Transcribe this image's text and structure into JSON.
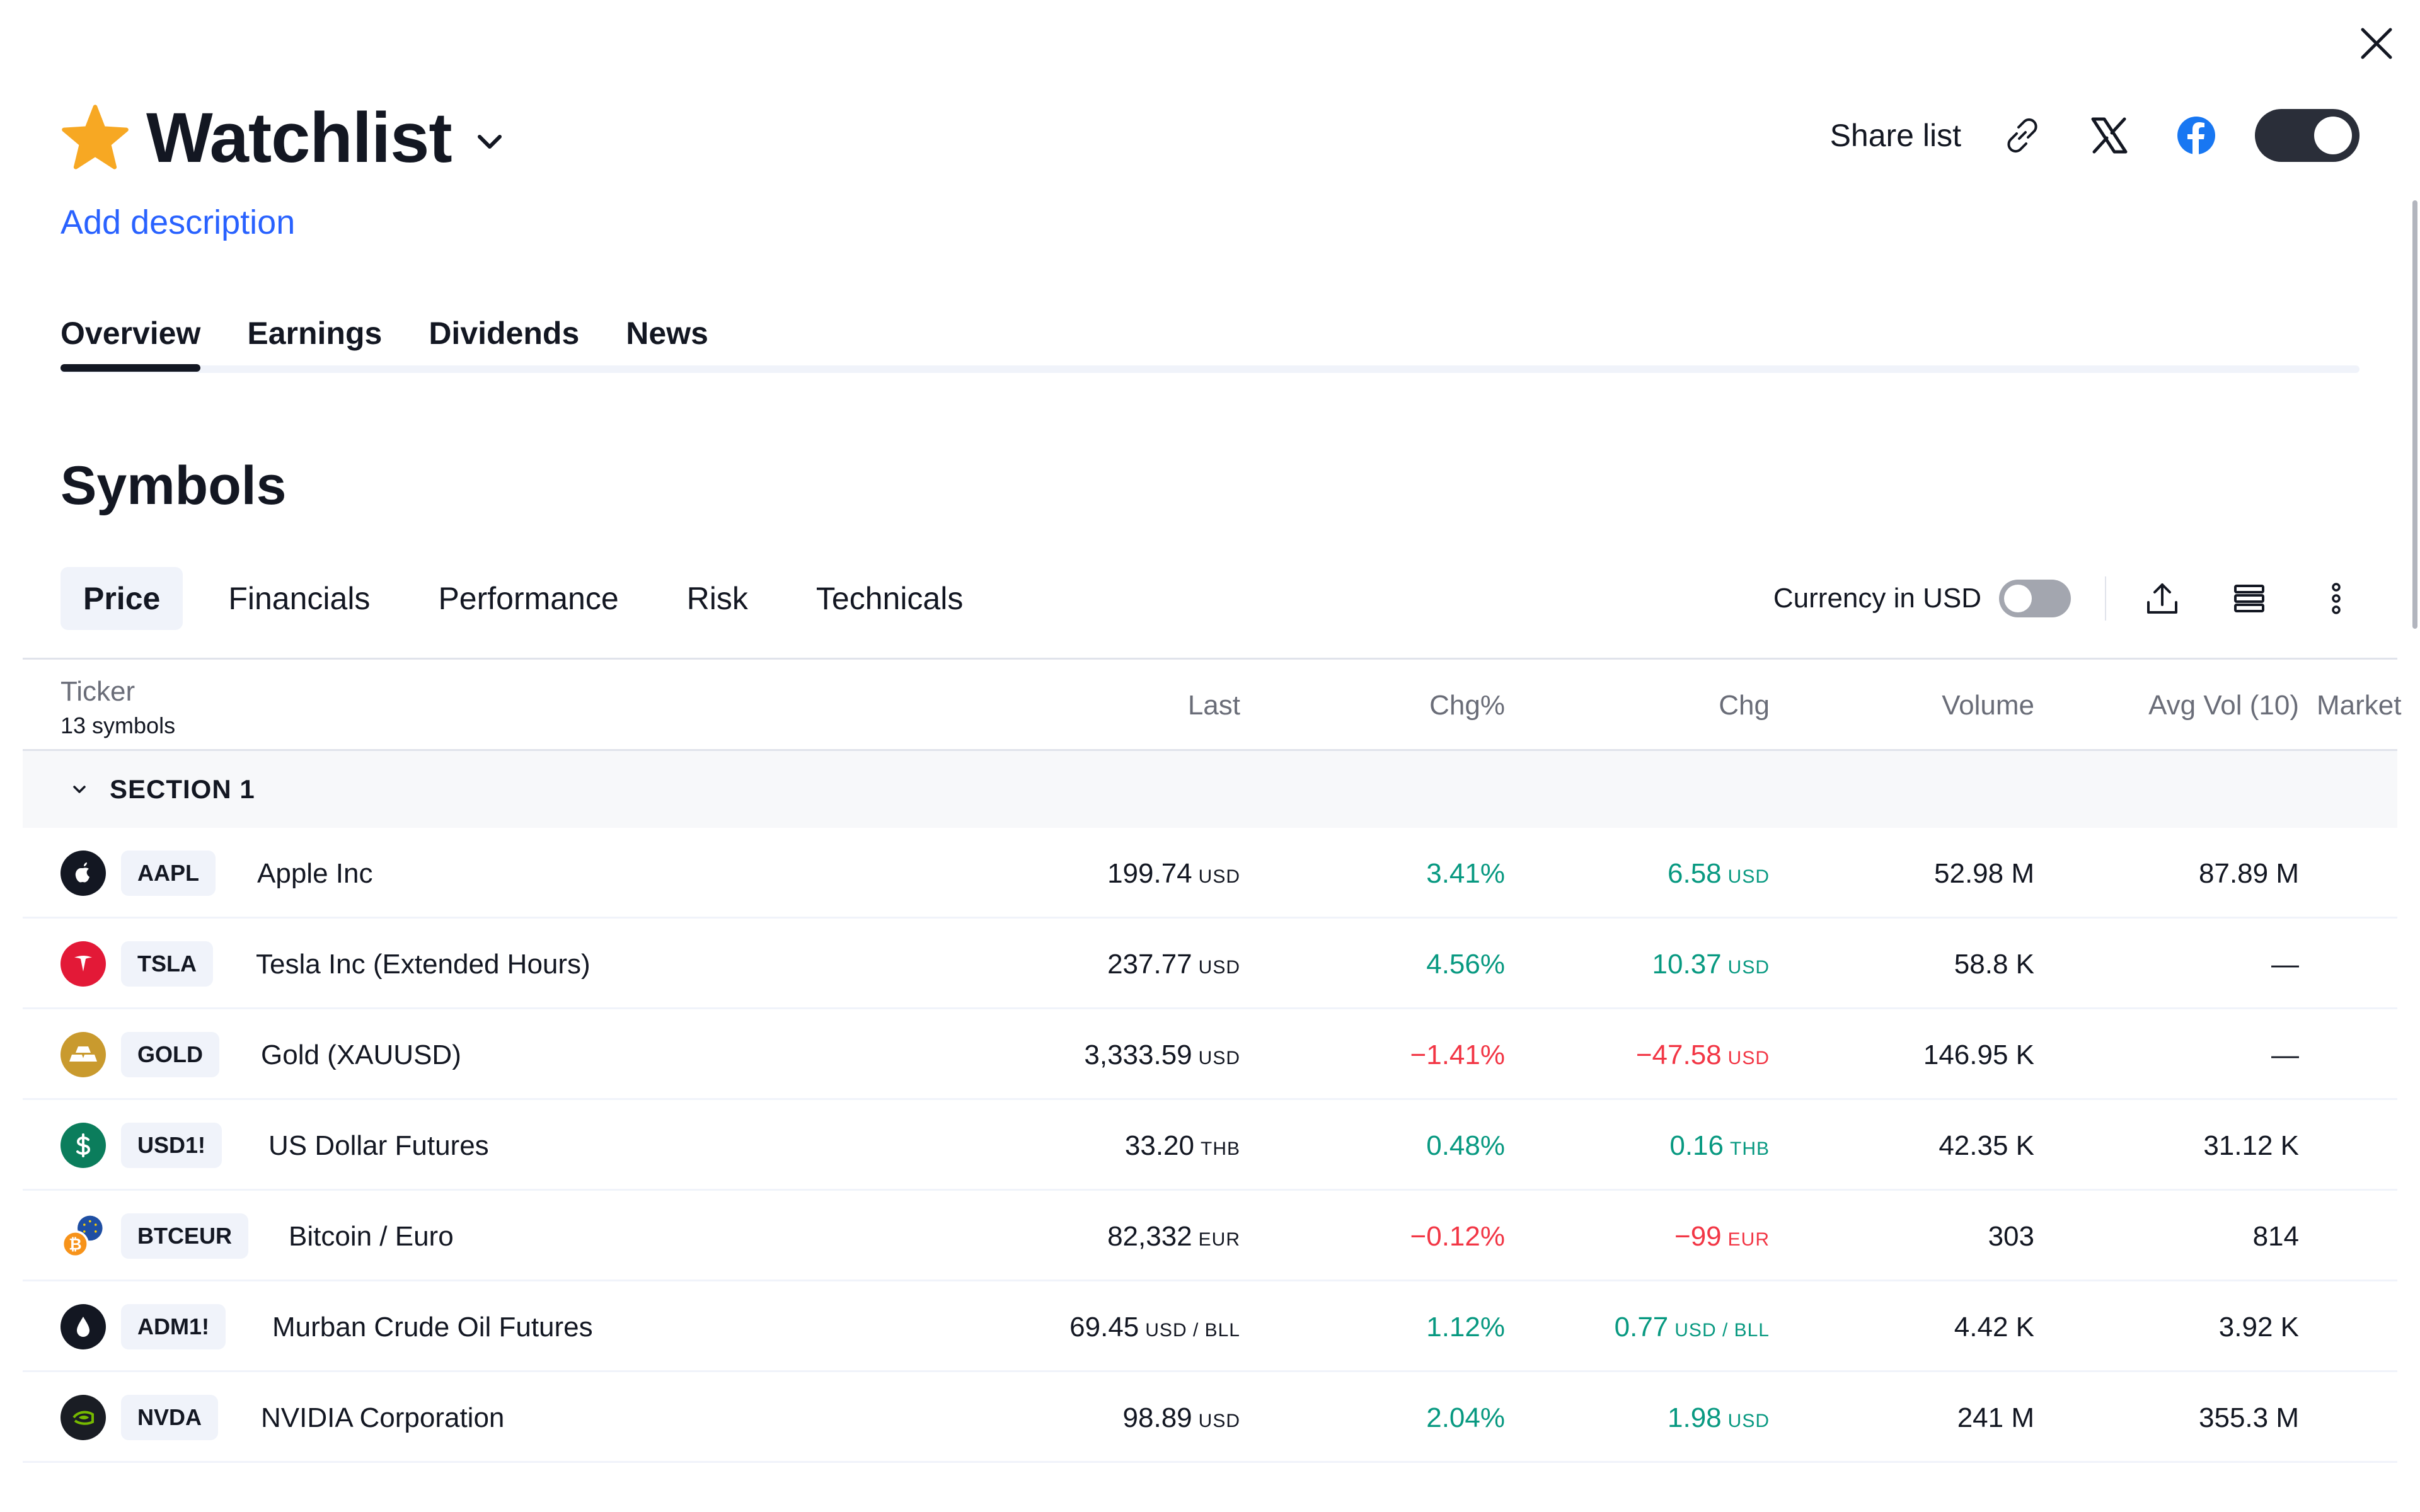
{
  "header": {
    "title": "Watchlist",
    "add_description": "Add description",
    "share_label": "Share list"
  },
  "tabs": [
    "Overview",
    "Earnings",
    "Dividends",
    "News"
  ],
  "section_title": "Symbols",
  "subtabs": [
    "Price",
    "Financials",
    "Performance",
    "Risk",
    "Technicals"
  ],
  "currency_label": "Currency in USD",
  "table": {
    "ticker_header": "Ticker",
    "symbol_count": "13 symbols",
    "columns": [
      "Last",
      "Chg%",
      "Chg",
      "Volume",
      "Avg Vol (10)",
      "Market"
    ],
    "section": "SECTION 1",
    "rows": [
      {
        "ticker": "AAPL",
        "name": "Apple Inc",
        "last": "199.74",
        "last_unit": "USD",
        "chgp": "3.41%",
        "chg": "6.58",
        "chg_unit": "USD",
        "volume": "52.98 M",
        "avg": "87.89 M",
        "dir": "pos"
      },
      {
        "ticker": "TSLA",
        "name": "Tesla Inc (Extended Hours)",
        "last": "237.77",
        "last_unit": "USD",
        "chgp": "4.56%",
        "chg": "10.37",
        "chg_unit": "USD",
        "volume": "58.8 K",
        "avg": "—",
        "dir": "pos"
      },
      {
        "ticker": "GOLD",
        "name": "Gold (XAUUSD)",
        "last": "3,333.59",
        "last_unit": "USD",
        "chgp": "−1.41%",
        "chg": "−47.58",
        "chg_unit": "USD",
        "volume": "146.95 K",
        "avg": "—",
        "dir": "neg"
      },
      {
        "ticker": "USD1!",
        "name": "US Dollar Futures",
        "last": "33.20",
        "last_unit": "THB",
        "chgp": "0.48%",
        "chg": "0.16",
        "chg_unit": "THB",
        "volume": "42.35 K",
        "avg": "31.12 K",
        "dir": "pos"
      },
      {
        "ticker": "BTCEUR",
        "name": "Bitcoin / Euro",
        "last": "82,332",
        "last_unit": "EUR",
        "chgp": "−0.12%",
        "chg": "−99",
        "chg_unit": "EUR",
        "volume": "303",
        "avg": "814",
        "dir": "neg"
      },
      {
        "ticker": "ADM1!",
        "name": "Murban Crude Oil Futures",
        "last": "69.45",
        "last_unit": "USD / BLL",
        "chgp": "1.12%",
        "chg": "0.77",
        "chg_unit": "USD / BLL",
        "volume": "4.42 K",
        "avg": "3.92 K",
        "dir": "pos"
      },
      {
        "ticker": "NVDA",
        "name": "NVIDIA Corporation",
        "last": "98.89",
        "last_unit": "USD",
        "chgp": "2.04%",
        "chg": "1.98",
        "chg_unit": "USD",
        "volume": "241 M",
        "avg": "355.3 M",
        "dir": "pos"
      }
    ]
  },
  "colors": {
    "positive": "#089981",
    "negative": "#f23645",
    "accent": "#2962ff",
    "star": "#f7a823"
  }
}
